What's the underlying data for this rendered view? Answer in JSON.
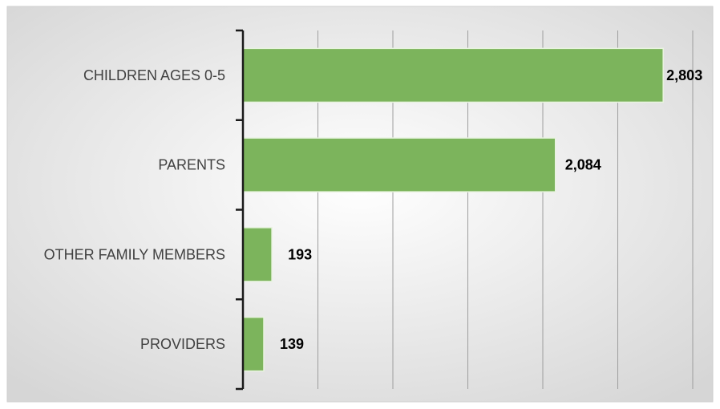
{
  "chart_data": {
    "type": "bar",
    "orientation": "horizontal",
    "categories": [
      "CHILDREN AGES 0-5",
      "PARENTS",
      "OTHER FAMILY MEMBERS",
      "PROVIDERS"
    ],
    "values": [
      2803,
      2084,
      193,
      139
    ],
    "value_labels": [
      "2,803",
      "2,084",
      "193",
      "139"
    ],
    "title": "",
    "xlabel": "",
    "ylabel": "",
    "xlim": [
      0,
      3000
    ],
    "grid": true,
    "legend": "none",
    "bar_color": "#7cb45c",
    "bar_edge_color": "#e8f3df",
    "axis_color": "#1a1a1a",
    "grid_color": "#9e9e9e",
    "background_gradient": [
      "#ffffff",
      "#d9d9d9"
    ]
  }
}
